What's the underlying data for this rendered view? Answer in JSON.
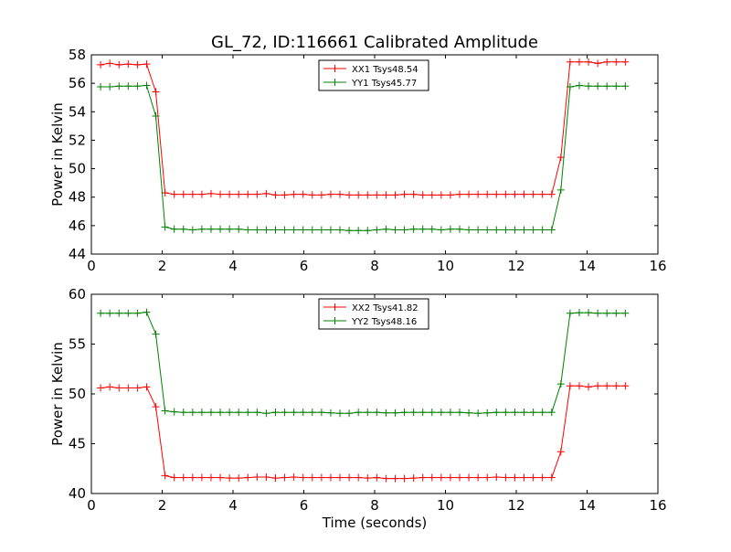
{
  "chart_data": [
    {
      "type": "line",
      "title": "GL_72, ID:116661 Calibrated Amplitude",
      "xlabel": "",
      "ylabel": "Power in Kelvin",
      "xlim": [
        0,
        16
      ],
      "ylim": [
        44,
        58
      ],
      "xticks": [
        0,
        2,
        4,
        6,
        8,
        10,
        12,
        14,
        16
      ],
      "yticks": [
        44,
        46,
        48,
        50,
        52,
        54,
        56,
        58
      ],
      "legend_position": "top-center",
      "grid": false,
      "x": [
        0.26,
        0.52,
        0.78,
        1.04,
        1.3,
        1.56,
        1.82,
        2.08,
        2.34,
        2.6,
        2.86,
        3.12,
        3.38,
        3.64,
        3.9,
        4.16,
        4.42,
        4.68,
        4.94,
        5.2,
        5.46,
        5.72,
        5.98,
        6.24,
        6.5,
        6.76,
        7.02,
        7.28,
        7.54,
        7.8,
        8.06,
        8.32,
        8.58,
        8.84,
        9.1,
        9.36,
        9.62,
        9.88,
        10.14,
        10.4,
        10.66,
        10.92,
        11.18,
        11.44,
        11.7,
        11.96,
        12.22,
        12.48,
        12.74,
        13.0,
        13.26,
        13.52,
        13.78,
        14.04,
        14.3,
        14.56,
        14.82,
        15.08
      ],
      "series": [
        {
          "name": "XX1 Tsys48.54",
          "color": "#ff0000",
          "values": [
            57.3,
            57.4,
            57.3,
            57.35,
            57.3,
            57.35,
            55.4,
            48.3,
            48.2,
            48.2,
            48.2,
            48.2,
            48.25,
            48.2,
            48.2,
            48.2,
            48.2,
            48.2,
            48.25,
            48.15,
            48.15,
            48.2,
            48.2,
            48.15,
            48.15,
            48.2,
            48.2,
            48.15,
            48.15,
            48.15,
            48.15,
            48.15,
            48.15,
            48.2,
            48.2,
            48.15,
            48.15,
            48.15,
            48.15,
            48.2,
            48.2,
            48.2,
            48.2,
            48.2,
            48.2,
            48.2,
            48.2,
            48.2,
            48.2,
            48.2,
            50.8,
            57.5,
            57.5,
            57.5,
            57.4,
            57.5,
            57.5,
            57.5
          ]
        },
        {
          "name": "YY1 Tsys45.77",
          "color": "#008000",
          "values": [
            55.75,
            55.75,
            55.8,
            55.8,
            55.8,
            55.85,
            53.7,
            45.9,
            45.75,
            45.75,
            45.7,
            45.75,
            45.75,
            45.75,
            45.75,
            45.75,
            45.7,
            45.7,
            45.7,
            45.7,
            45.7,
            45.7,
            45.7,
            45.7,
            45.7,
            45.7,
            45.7,
            45.65,
            45.65,
            45.65,
            45.7,
            45.75,
            45.7,
            45.7,
            45.75,
            45.75,
            45.75,
            45.7,
            45.75,
            45.75,
            45.7,
            45.7,
            45.7,
            45.7,
            45.7,
            45.7,
            45.7,
            45.7,
            45.7,
            45.7,
            48.5,
            55.75,
            55.85,
            55.8,
            55.8,
            55.8,
            55.8,
            55.8
          ]
        }
      ]
    },
    {
      "type": "line",
      "title": "",
      "xlabel": "Time (seconds)",
      "ylabel": "Power in Kelvin",
      "xlim": [
        0,
        16
      ],
      "ylim": [
        40,
        60
      ],
      "xticks": [
        0,
        2,
        4,
        6,
        8,
        10,
        12,
        14,
        16
      ],
      "yticks": [
        40,
        45,
        50,
        55,
        60
      ],
      "legend_position": "top-center",
      "grid": false,
      "x": [
        0.26,
        0.52,
        0.78,
        1.04,
        1.3,
        1.56,
        1.82,
        2.08,
        2.34,
        2.6,
        2.86,
        3.12,
        3.38,
        3.64,
        3.9,
        4.16,
        4.42,
        4.68,
        4.94,
        5.2,
        5.46,
        5.72,
        5.98,
        6.24,
        6.5,
        6.76,
        7.02,
        7.28,
        7.54,
        7.8,
        8.06,
        8.32,
        8.58,
        8.84,
        9.1,
        9.36,
        9.62,
        9.88,
        10.14,
        10.4,
        10.66,
        10.92,
        11.18,
        11.44,
        11.7,
        11.96,
        12.22,
        12.48,
        12.74,
        13.0,
        13.26,
        13.52,
        13.78,
        14.04,
        14.3,
        14.56,
        14.82,
        15.08
      ],
      "series": [
        {
          "name": "XX2 Tsys41.82",
          "color": "#ff0000",
          "values": [
            50.6,
            50.7,
            50.6,
            50.6,
            50.6,
            50.7,
            48.7,
            41.8,
            41.6,
            41.6,
            41.6,
            41.6,
            41.6,
            41.6,
            41.55,
            41.55,
            41.6,
            41.65,
            41.65,
            41.55,
            41.6,
            41.65,
            41.6,
            41.6,
            41.6,
            41.6,
            41.6,
            41.6,
            41.6,
            41.55,
            41.6,
            41.5,
            41.5,
            41.5,
            41.55,
            41.6,
            41.6,
            41.6,
            41.6,
            41.6,
            41.6,
            41.6,
            41.6,
            41.65,
            41.6,
            41.6,
            41.6,
            41.6,
            41.6,
            41.6,
            44.2,
            50.8,
            50.8,
            50.7,
            50.8,
            50.8,
            50.8,
            50.8
          ]
        },
        {
          "name": "YY2 Tsys48.16",
          "color": "#008000",
          "values": [
            58.1,
            58.1,
            58.1,
            58.1,
            58.1,
            58.2,
            56.0,
            48.3,
            48.2,
            48.15,
            48.15,
            48.15,
            48.15,
            48.15,
            48.15,
            48.15,
            48.15,
            48.15,
            48.05,
            48.15,
            48.15,
            48.15,
            48.15,
            48.15,
            48.15,
            48.1,
            48.05,
            48.05,
            48.15,
            48.15,
            48.15,
            48.1,
            48.1,
            48.15,
            48.15,
            48.15,
            48.15,
            48.15,
            48.15,
            48.15,
            48.1,
            48.05,
            48.1,
            48.15,
            48.15,
            48.15,
            48.15,
            48.15,
            48.15,
            48.15,
            51.0,
            58.1,
            58.15,
            58.15,
            58.1,
            58.1,
            58.1,
            58.1
          ]
        }
      ]
    }
  ]
}
